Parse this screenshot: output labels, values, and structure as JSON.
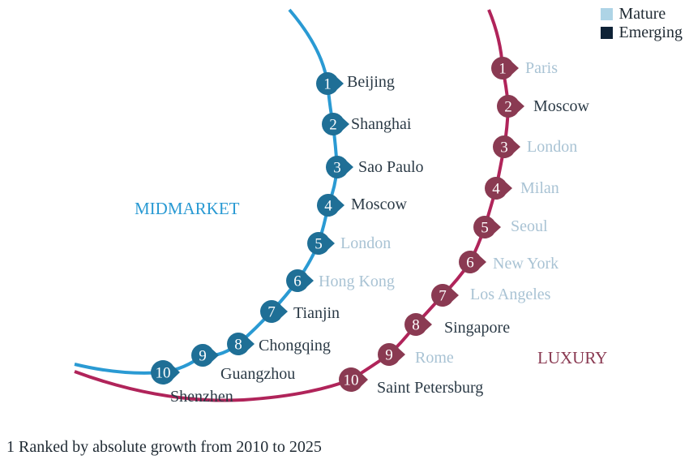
{
  "legend": {
    "mature_label": "Mature",
    "emerging_label": "Emerging",
    "mature_color": "#aed4e6",
    "emerging_color": "#0e2236"
  },
  "midmarket": {
    "title": "MIDMARKET",
    "line_color": "#2a9ad3",
    "badge_color": "#1f6f96",
    "label_color": "#2a9ad3",
    "cities": [
      {
        "rank": "1",
        "name": "Beijing",
        "type": "emerging"
      },
      {
        "rank": "2",
        "name": "Shanghai",
        "type": "emerging"
      },
      {
        "rank": "3",
        "name": "Sao Paulo",
        "type": "emerging"
      },
      {
        "rank": "4",
        "name": "Moscow",
        "type": "emerging"
      },
      {
        "rank": "5",
        "name": "London",
        "type": "mature"
      },
      {
        "rank": "6",
        "name": "Hong Kong",
        "type": "mature"
      },
      {
        "rank": "7",
        "name": "Tianjin",
        "type": "emerging"
      },
      {
        "rank": "8",
        "name": "Chongqing",
        "type": "emerging"
      },
      {
        "rank": "9",
        "name": "Guangzhou",
        "type": "emerging"
      },
      {
        "rank": "10",
        "name": "Shenzhen",
        "type": "emerging"
      }
    ]
  },
  "luxury": {
    "title": "LUXURY",
    "line_color": "#b0245a",
    "badge_color": "#8a3a52",
    "label_color": "#8a3a52",
    "cities": [
      {
        "rank": "1",
        "name": "Paris",
        "type": "mature"
      },
      {
        "rank": "2",
        "name": "Moscow",
        "type": "emerging"
      },
      {
        "rank": "3",
        "name": "London",
        "type": "mature"
      },
      {
        "rank": "4",
        "name": "Milan",
        "type": "mature"
      },
      {
        "rank": "5",
        "name": "Seoul",
        "type": "mature"
      },
      {
        "rank": "6",
        "name": "New York",
        "type": "mature"
      },
      {
        "rank": "7",
        "name": "Los Angeles",
        "type": "mature"
      },
      {
        "rank": "8",
        "name": "Singapore",
        "type": "emerging"
      },
      {
        "rank": "9",
        "name": "Rome",
        "type": "mature"
      },
      {
        "rank": "10",
        "name": "Saint Petersburg",
        "type": "emerging"
      }
    ]
  },
  "footnote": "1 Ranked by absolute growth from 2010 to 2025"
}
